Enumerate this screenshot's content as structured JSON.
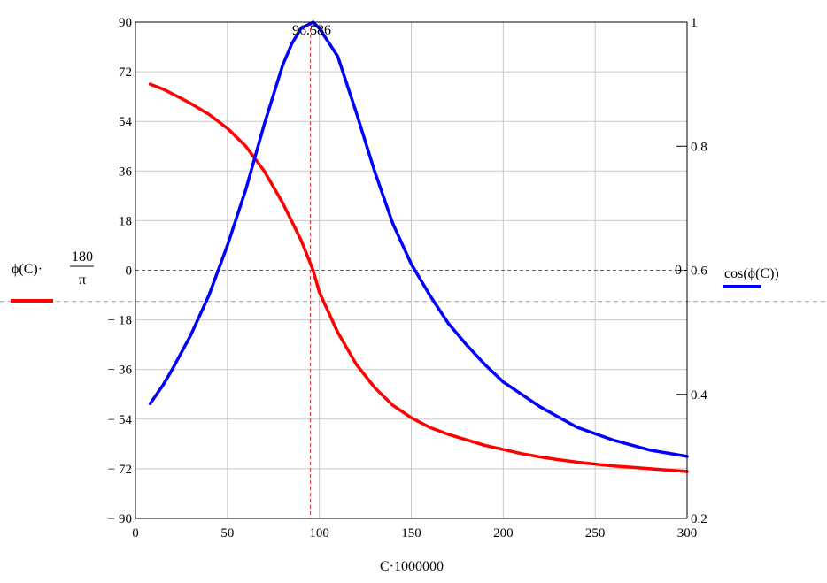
{
  "chart_data": {
    "type": "line",
    "xlabel": "C·1000000",
    "xlim": [
      0,
      300
    ],
    "x_ticks": [
      "0",
      "50",
      "100",
      "150",
      "200",
      "250",
      "300"
    ],
    "y_left": {
      "label_parts": [
        "ϕ(C)·",
        "180",
        "π"
      ],
      "lim": [
        -90,
        90
      ],
      "ticks": [
        "90",
        "72",
        "54",
        "36",
        "18",
        "0",
        "− 18",
        "− 36",
        "− 54",
        "− 72",
        "− 90"
      ]
    },
    "y_right": {
      "label": "cos(ϕ(C))",
      "lim": [
        0.2,
        1
      ],
      "ticks": [
        "1",
        "0.8",
        "0.6",
        "0.4",
        "0.2"
      ]
    },
    "grid": true,
    "series": [
      {
        "axis": "left",
        "color": "#ff0000",
        "x": [
          8,
          15,
          20,
          25,
          30,
          40,
          50,
          60,
          70,
          80,
          90,
          96.586,
          100,
          110,
          120,
          130,
          140,
          150,
          160,
          170,
          180,
          190,
          200,
          210,
          220,
          230,
          240,
          250,
          260,
          270,
          280,
          290,
          300
        ],
        "y": [
          67.5,
          65.7,
          64.0,
          62.3,
          60.5,
          56.5,
          51.5,
          45.0,
          36.0,
          24.5,
          11.0,
          0,
          -8.0,
          -22.5,
          -34.0,
          -42.5,
          -49.0,
          -53.5,
          -57.0,
          -59.5,
          -61.5,
          -63.5,
          -65.0,
          -66.5,
          -67.7,
          -68.7,
          -69.6,
          -70.3,
          -71.0,
          -71.5,
          -72.0,
          -72.5,
          -73.0
        ]
      },
      {
        "axis": "right",
        "color": "#0000ff",
        "x": [
          8,
          15,
          20,
          30,
          40,
          50,
          60,
          70,
          80,
          85,
          90,
          96.586,
          100,
          110,
          120,
          130,
          140,
          150,
          160,
          170,
          180,
          190,
          200,
          220,
          240,
          260,
          280,
          300
        ],
        "y": [
          0.385,
          0.415,
          0.44,
          0.495,
          0.56,
          0.64,
          0.73,
          0.835,
          0.93,
          0.965,
          0.99,
          1.0,
          0.99,
          0.945,
          0.855,
          0.76,
          0.675,
          0.61,
          0.56,
          0.515,
          0.48,
          0.448,
          0.42,
          0.38,
          0.347,
          0.326,
          0.31,
          0.3
        ]
      }
    ],
    "annotation": {
      "text": "96.586",
      "x": 96.586
    },
    "markers": {
      "right_axis_zero_label": "0"
    }
  }
}
